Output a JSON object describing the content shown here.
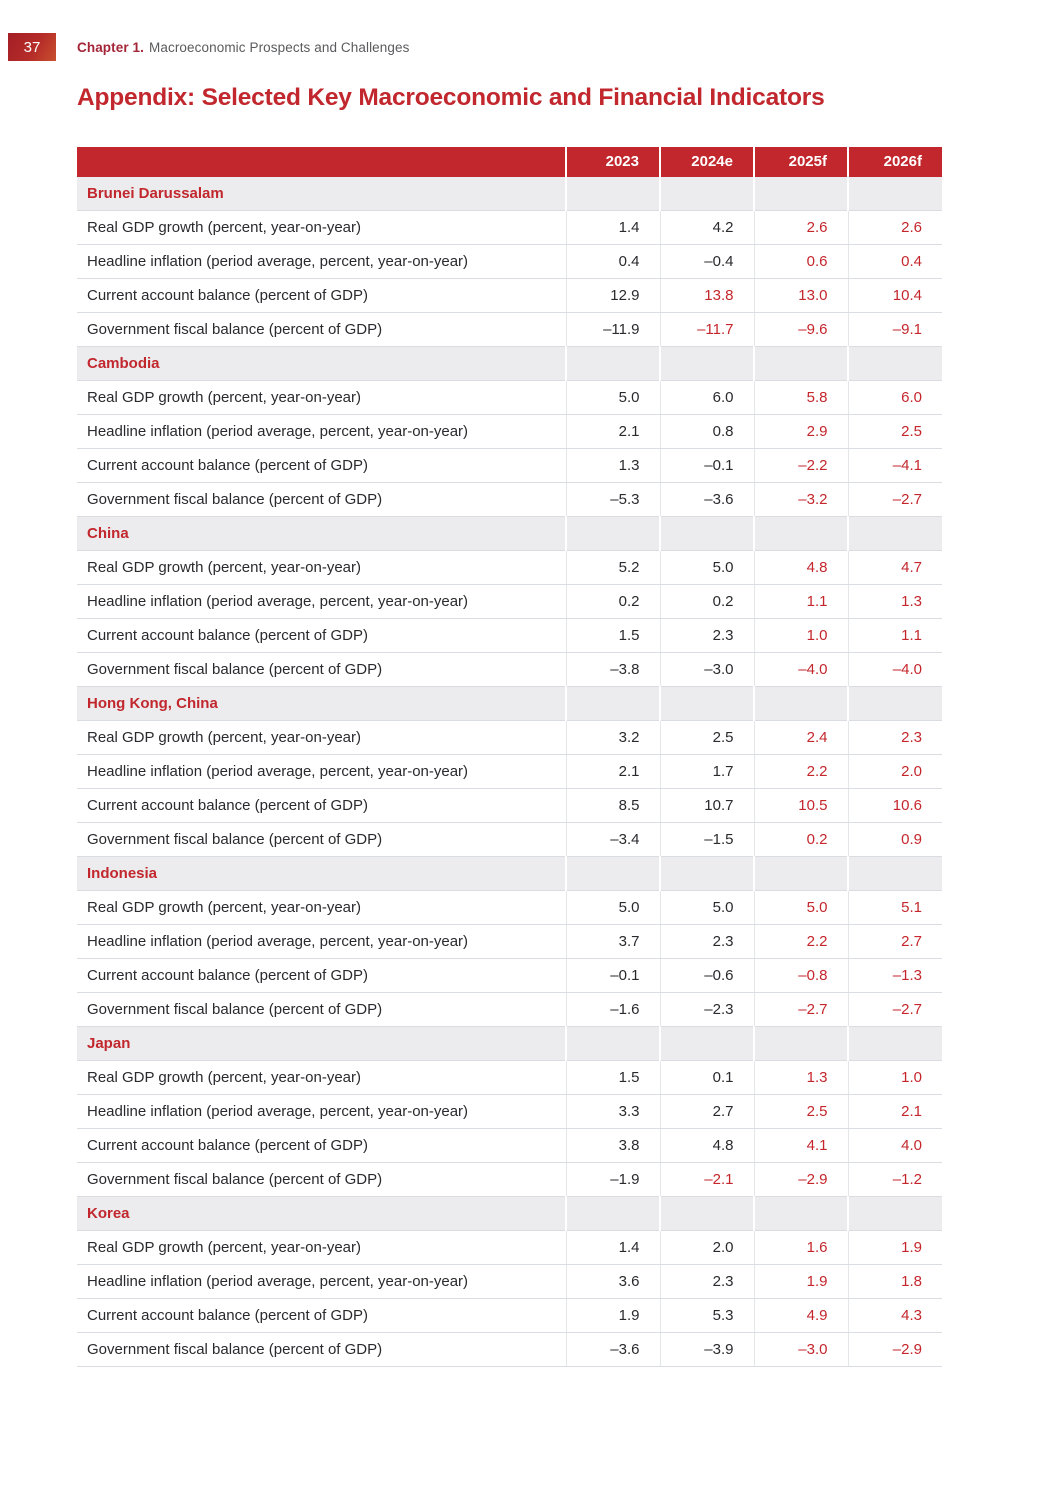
{
  "page": {
    "page_number": "37",
    "chapter_label": "Chapter 1.",
    "chapter_title": "Macroeconomic Prospects and Challenges",
    "title": "Appendix: Selected Key Macroeconomic and Financial Indicators"
  },
  "colors": {
    "accent_red": "#c1272d",
    "forecast_value_red": "#c4262c",
    "section_row_bg": "#ececee",
    "row_border": "#d9dce0",
    "body_text": "#2a2a2e",
    "chapter_label_red": "#a32638",
    "chapter_text_gray": "#5a5b5e",
    "page_badge_gradient": [
      "#a31f26",
      "#c8502f"
    ]
  },
  "table": {
    "columns": [
      "2023",
      "2024e",
      "2025f",
      "2026f"
    ],
    "sections": [
      {
        "country": "Brunei Darussalam",
        "rows": [
          {
            "indicator": "Real GDP growth (percent, year-on-year)",
            "values": [
              "1.4",
              "4.2",
              "2.6",
              "2.6"
            ],
            "red": [
              false,
              false,
              true,
              true
            ]
          },
          {
            "indicator": "Headline inflation (period average, percent, year-on-year)",
            "values": [
              "0.4",
              "–0.4",
              "0.6",
              "0.4"
            ],
            "red": [
              false,
              false,
              true,
              true
            ]
          },
          {
            "indicator": "Current account balance (percent of GDP)",
            "values": [
              "12.9",
              "13.8",
              "13.0",
              "10.4"
            ],
            "red": [
              false,
              true,
              true,
              true
            ]
          },
          {
            "indicator": "Government fiscal balance (percent of GDP)",
            "values": [
              "–11.9",
              "–11.7",
              "–9.6",
              "–9.1"
            ],
            "red": [
              false,
              true,
              true,
              true
            ]
          }
        ]
      },
      {
        "country": "Cambodia",
        "rows": [
          {
            "indicator": "Real GDP growth (percent, year-on-year)",
            "values": [
              "5.0",
              "6.0",
              "5.8",
              "6.0"
            ],
            "red": [
              false,
              false,
              true,
              true
            ]
          },
          {
            "indicator": "Headline inflation (period average, percent, year-on-year)",
            "values": [
              "2.1",
              "0.8",
              "2.9",
              "2.5"
            ],
            "red": [
              false,
              false,
              true,
              true
            ]
          },
          {
            "indicator": "Current account balance (percent of GDP)",
            "values": [
              "1.3",
              "–0.1",
              "–2.2",
              "–4.1"
            ],
            "red": [
              false,
              false,
              true,
              true
            ]
          },
          {
            "indicator": "Government fiscal balance (percent of GDP)",
            "values": [
              "–5.3",
              "–3.6",
              "–3.2",
              "–2.7"
            ],
            "red": [
              false,
              false,
              true,
              true
            ]
          }
        ]
      },
      {
        "country": "China",
        "rows": [
          {
            "indicator": "Real GDP growth (percent, year-on-year)",
            "values": [
              "5.2",
              "5.0",
              "4.8",
              "4.7"
            ],
            "red": [
              false,
              false,
              true,
              true
            ]
          },
          {
            "indicator": "Headline inflation (period average, percent, year-on-year)",
            "values": [
              "0.2",
              "0.2",
              "1.1",
              "1.3"
            ],
            "red": [
              false,
              false,
              true,
              true
            ]
          },
          {
            "indicator": "Current account balance (percent of GDP)",
            "values": [
              "1.5",
              "2.3",
              "1.0",
              "1.1"
            ],
            "red": [
              false,
              false,
              true,
              true
            ]
          },
          {
            "indicator": "Government fiscal balance (percent of GDP)",
            "values": [
              "–3.8",
              "–3.0",
              "–4.0",
              "–4.0"
            ],
            "red": [
              false,
              false,
              true,
              true
            ]
          }
        ]
      },
      {
        "country": "Hong Kong, China",
        "rows": [
          {
            "indicator": "Real GDP growth (percent, year-on-year)",
            "values": [
              "3.2",
              "2.5",
              "2.4",
              "2.3"
            ],
            "red": [
              false,
              false,
              true,
              true
            ]
          },
          {
            "indicator": "Headline inflation (period average, percent, year-on-year)",
            "values": [
              "2.1",
              "1.7",
              "2.2",
              "2.0"
            ],
            "red": [
              false,
              false,
              true,
              true
            ]
          },
          {
            "indicator": "Current account balance (percent of GDP)",
            "values": [
              "8.5",
              "10.7",
              "10.5",
              "10.6"
            ],
            "red": [
              false,
              false,
              true,
              true
            ]
          },
          {
            "indicator": "Government fiscal balance (percent of GDP)",
            "values": [
              "–3.4",
              "–1.5",
              "0.2",
              "0.9"
            ],
            "red": [
              false,
              false,
              true,
              true
            ]
          }
        ]
      },
      {
        "country": "Indonesia",
        "rows": [
          {
            "indicator": "Real GDP growth (percent, year-on-year)",
            "values": [
              "5.0",
              "5.0",
              "5.0",
              "5.1"
            ],
            "red": [
              false,
              false,
              true,
              true
            ]
          },
          {
            "indicator": "Headline inflation (period average, percent, year-on-year)",
            "values": [
              "3.7",
              "2.3",
              "2.2",
              "2.7"
            ],
            "red": [
              false,
              false,
              true,
              true
            ]
          },
          {
            "indicator": "Current account balance (percent of GDP)",
            "values": [
              "–0.1",
              "–0.6",
              "–0.8",
              "–1.3"
            ],
            "red": [
              false,
              false,
              true,
              true
            ]
          },
          {
            "indicator": "Government fiscal balance (percent of GDP)",
            "values": [
              "–1.6",
              "–2.3",
              "–2.7",
              "–2.7"
            ],
            "red": [
              false,
              false,
              true,
              true
            ]
          }
        ]
      },
      {
        "country": "Japan",
        "rows": [
          {
            "indicator": "Real GDP growth (percent, year-on-year)",
            "values": [
              "1.5",
              "0.1",
              "1.3",
              "1.0"
            ],
            "red": [
              false,
              false,
              true,
              true
            ]
          },
          {
            "indicator": "Headline inflation (period average, percent, year-on-year)",
            "values": [
              "3.3",
              "2.7",
              "2.5",
              "2.1"
            ],
            "red": [
              false,
              false,
              true,
              true
            ]
          },
          {
            "indicator": "Current account balance (percent of GDP)",
            "values": [
              "3.8",
              "4.8",
              "4.1",
              "4.0"
            ],
            "red": [
              false,
              false,
              true,
              true
            ]
          },
          {
            "indicator": "Government fiscal balance (percent of GDP)",
            "values": [
              "–1.9",
              "–2.1",
              "–2.9",
              "–1.2"
            ],
            "red": [
              false,
              true,
              true,
              true
            ]
          }
        ]
      },
      {
        "country": "Korea",
        "rows": [
          {
            "indicator": "Real GDP growth (percent, year-on-year)",
            "values": [
              "1.4",
              "2.0",
              "1.6",
              "1.9"
            ],
            "red": [
              false,
              false,
              true,
              true
            ]
          },
          {
            "indicator": "Headline inflation (period average, percent, year-on-year)",
            "values": [
              "3.6",
              "2.3",
              "1.9",
              "1.8"
            ],
            "red": [
              false,
              false,
              true,
              true
            ]
          },
          {
            "indicator": "Current account balance (percent of GDP)",
            "values": [
              "1.9",
              "5.3",
              "4.9",
              "4.3"
            ],
            "red": [
              false,
              false,
              true,
              true
            ]
          },
          {
            "indicator": "Government fiscal balance (percent of GDP)",
            "values": [
              "–3.6",
              "–3.9",
              "–3.0",
              "–2.9"
            ],
            "red": [
              false,
              false,
              true,
              true
            ]
          }
        ]
      }
    ]
  }
}
